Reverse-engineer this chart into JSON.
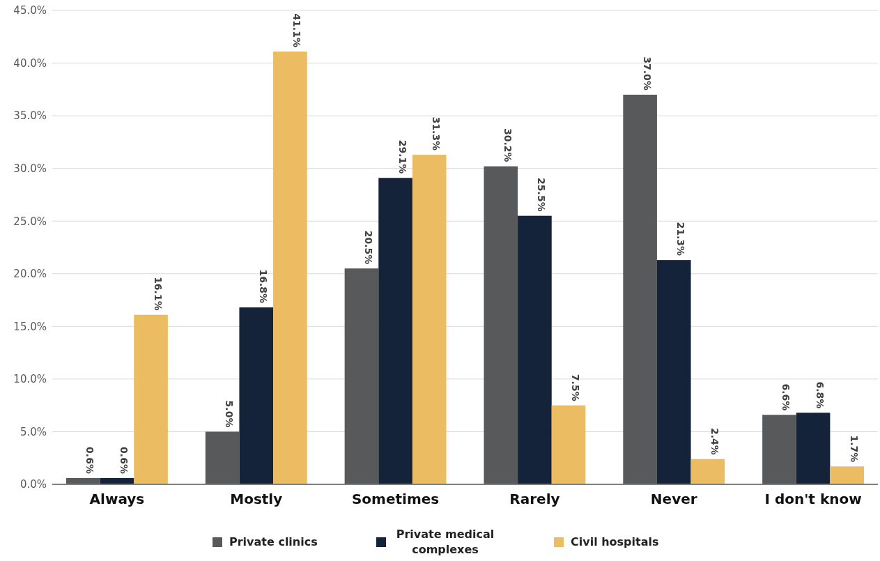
{
  "chart_data": {
    "type": "bar",
    "categories": [
      "Always",
      "Mostly",
      "Sometimes",
      "Rarely",
      "Never",
      "I don't know"
    ],
    "series": [
      {
        "name": "Private clinics",
        "color": "#58595b",
        "values": [
          0.6,
          5.0,
          20.5,
          30.2,
          37.0,
          6.6
        ],
        "value_labels": [
          "0.6%",
          "5.0%",
          "20.5%",
          "30.2%",
          "37.0%",
          "6.6%"
        ]
      },
      {
        "name": "Private medical complexes",
        "color": "#14223a",
        "values": [
          0.6,
          16.8,
          29.1,
          25.5,
          21.3,
          6.8
        ],
        "value_labels": [
          "0.6%",
          "16.8%",
          "29.1%",
          "25.5%",
          "21.3%",
          "6.8%"
        ]
      },
      {
        "name": "Civil hospitals",
        "color": "#ecbc63",
        "values": [
          16.1,
          41.1,
          31.3,
          7.5,
          2.4,
          1.7
        ],
        "value_labels": [
          "16.1%",
          "41.1%",
          "31.3%",
          "7.5%",
          "2.4%",
          "1.7%"
        ]
      }
    ],
    "ylim": [
      0,
      45
    ],
    "yticks": [
      {
        "value": 0,
        "label": "0.0%"
      },
      {
        "value": 5,
        "label": "5.0%"
      },
      {
        "value": 10,
        "label": "10.0%"
      },
      {
        "value": 15,
        "label": "15.0%"
      },
      {
        "value": 20,
        "label": "20.0%"
      },
      {
        "value": 25,
        "label": "25.0%"
      },
      {
        "value": 30,
        "label": "30.0%"
      },
      {
        "value": 35,
        "label": "35.0%"
      },
      {
        "value": 40,
        "label": "40.0%"
      },
      {
        "value": 45,
        "label": "45.0%"
      }
    ],
    "grid": "y",
    "legend": "bottom"
  }
}
